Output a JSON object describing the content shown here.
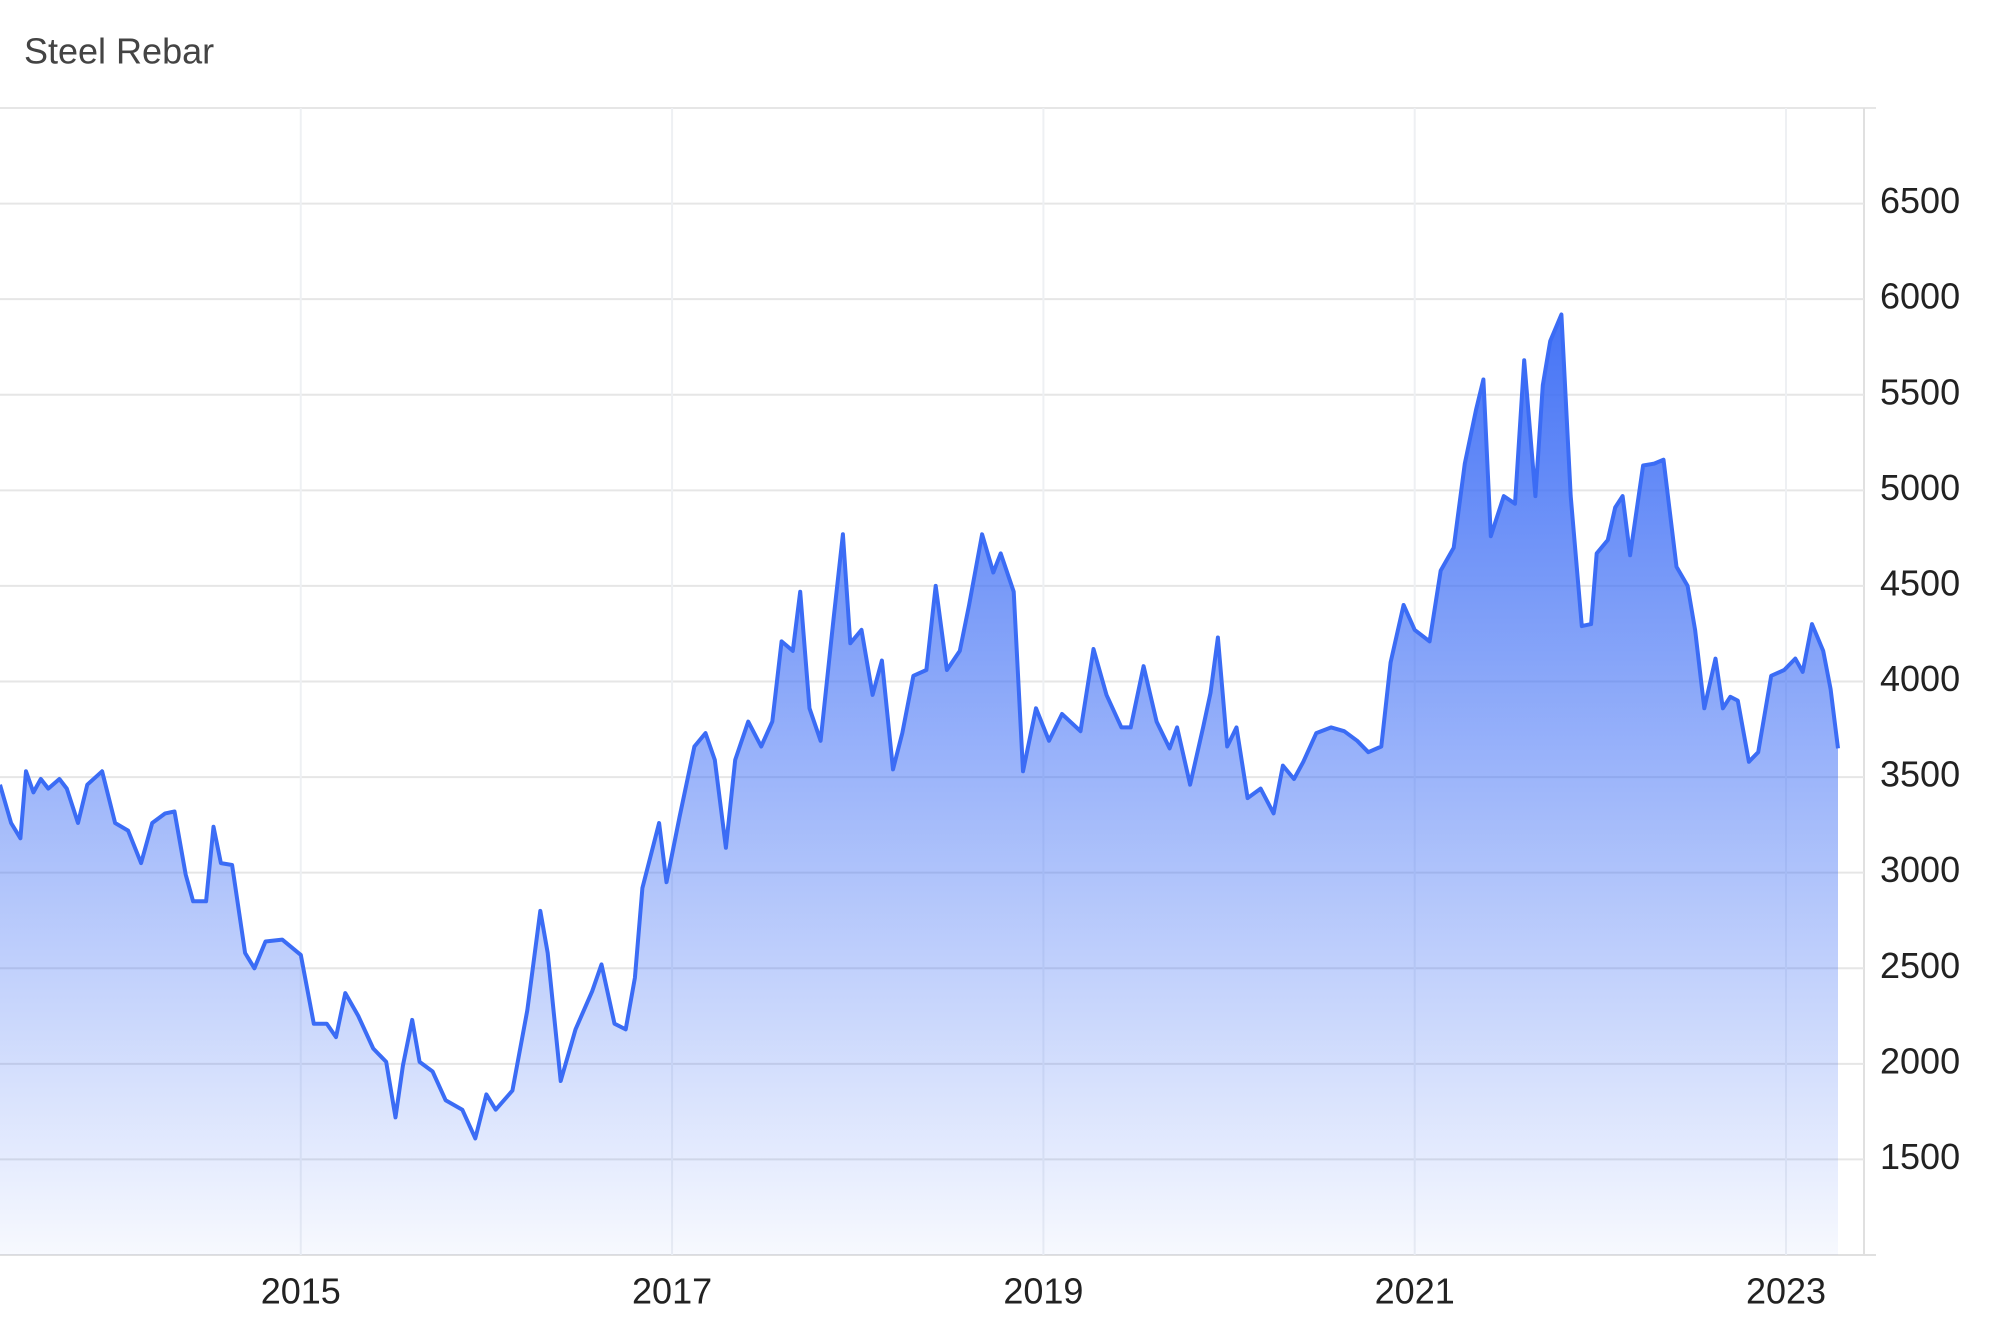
{
  "chart_data": {
    "type": "area",
    "title": "Steel Rebar",
    "color": "#3b6cf5",
    "xlim": [
      2013.38,
      2023.42
    ],
    "xticks": [
      2015,
      2017,
      2019,
      2021,
      2023
    ],
    "ylim": [
      1000,
      7000
    ],
    "yticks": [
      1500,
      2000,
      2500,
      3000,
      3500,
      4000,
      4500,
      5000,
      5500,
      6000,
      6500
    ],
    "grid": true,
    "x": [
      2013.38,
      2013.44,
      2013.49,
      2013.52,
      2013.56,
      2013.6,
      2013.64,
      2013.7,
      2013.74,
      2013.8,
      2013.85,
      2013.93,
      2014.0,
      2014.07,
      2014.14,
      2014.2,
      2014.27,
      2014.32,
      2014.38,
      2014.42,
      2014.49,
      2014.53,
      2014.57,
      2014.63,
      2014.7,
      2014.75,
      2014.81,
      2014.9,
      2015.0,
      2015.07,
      2015.14,
      2015.19,
      2015.24,
      2015.31,
      2015.39,
      2015.46,
      2015.51,
      2015.55,
      2015.6,
      2015.64,
      2015.71,
      2015.78,
      2015.87,
      2015.94,
      2016.0,
      2016.05,
      2016.14,
      2016.22,
      2016.29,
      2016.33,
      2016.4,
      2016.48,
      2016.57,
      2016.62,
      2016.69,
      2016.75,
      2016.8,
      2016.84,
      2016.93,
      2016.97,
      2017.04,
      2017.12,
      2017.18,
      2017.23,
      2017.29,
      2017.34,
      2017.41,
      2017.48,
      2017.54,
      2017.59,
      2017.65,
      2017.69,
      2017.74,
      2017.8,
      2017.87,
      2017.92,
      2017.96,
      2018.02,
      2018.08,
      2018.13,
      2018.19,
      2018.24,
      2018.3,
      2018.37,
      2018.42,
      2018.48,
      2018.55,
      2018.6,
      2018.67,
      2018.73,
      2018.77,
      2018.84,
      2018.89,
      2018.96,
      2019.03,
      2019.1,
      2019.2,
      2019.27,
      2019.34,
      2019.42,
      2019.47,
      2019.54,
      2019.61,
      2019.68,
      2019.72,
      2019.79,
      2019.86,
      2019.9,
      2019.94,
      2019.99,
      2020.04,
      2020.1,
      2020.17,
      2020.24,
      2020.29,
      2020.35,
      2020.4,
      2020.47,
      2020.55,
      2020.62,
      2020.69,
      2020.75,
      2020.82,
      2020.87,
      2020.94,
      2021.0,
      2021.08,
      2021.14,
      2021.21,
      2021.27,
      2021.33,
      2021.37,
      2021.41,
      2021.48,
      2021.54,
      2021.59,
      2021.65,
      2021.69,
      2021.73,
      2021.79,
      2021.84,
      2021.9,
      2021.95,
      2021.98,
      2022.04,
      2022.08,
      2022.12,
      2022.16,
      2022.23,
      2022.29,
      2022.34,
      2022.41,
      2022.47,
      2022.51,
      2022.56,
      2022.62,
      2022.66,
      2022.7,
      2022.74,
      2022.8,
      2022.85,
      2022.92,
      2022.99,
      2023.05,
      2023.09,
      2023.14,
      2023.2,
      2023.24,
      2023.28
    ],
    "values": [
      3460,
      3260,
      3180,
      3530,
      3420,
      3490,
      3440,
      3490,
      3440,
      3260,
      3460,
      3530,
      3260,
      3220,
      3050,
      3260,
      3310,
      3320,
      2990,
      2850,
      2850,
      3240,
      3050,
      3040,
      2580,
      2500,
      2640,
      2650,
      2570,
      2210,
      2210,
      2140,
      2370,
      2250,
      2080,
      2010,
      1720,
      1990,
      2230,
      2010,
      1960,
      1810,
      1760,
      1610,
      1840,
      1760,
      1860,
      2280,
      2800,
      2580,
      1910,
      2180,
      2380,
      2520,
      2210,
      2180,
      2450,
      2920,
      3260,
      2950,
      3290,
      3660,
      3730,
      3590,
      3130,
      3590,
      3790,
      3660,
      3790,
      4210,
      4160,
      4470,
      3860,
      3690,
      4330,
      4770,
      4200,
      4270,
      3930,
      4110,
      3540,
      3730,
      4030,
      4060,
      4500,
      4060,
      4160,
      4400,
      4770,
      4570,
      4670,
      4470,
      3530,
      3860,
      3690,
      3830,
      3740,
      4170,
      3930,
      3760,
      3760,
      4080,
      3790,
      3650,
      3760,
      3460,
      3760,
      3940,
      4230,
      3660,
      3760,
      3390,
      3440,
      3310,
      3560,
      3490,
      3580,
      3730,
      3760,
      3740,
      3690,
      3630,
      3660,
      4100,
      4400,
      4270,
      4210,
      4580,
      4700,
      5140,
      5420,
      5580,
      4760,
      4970,
      4930,
      5680,
      4970,
      5550,
      5780,
      5920,
      4970,
      4290,
      4300,
      4670,
      4740,
      4910,
      4970,
      4660,
      5130,
      5140,
      5160,
      4600,
      4500,
      4270,
      3860,
      4120,
      3860,
      3920,
      3900,
      3580,
      3630,
      4030,
      4060,
      4120,
      4050,
      4300,
      4160,
      3960,
      3650
    ]
  }
}
